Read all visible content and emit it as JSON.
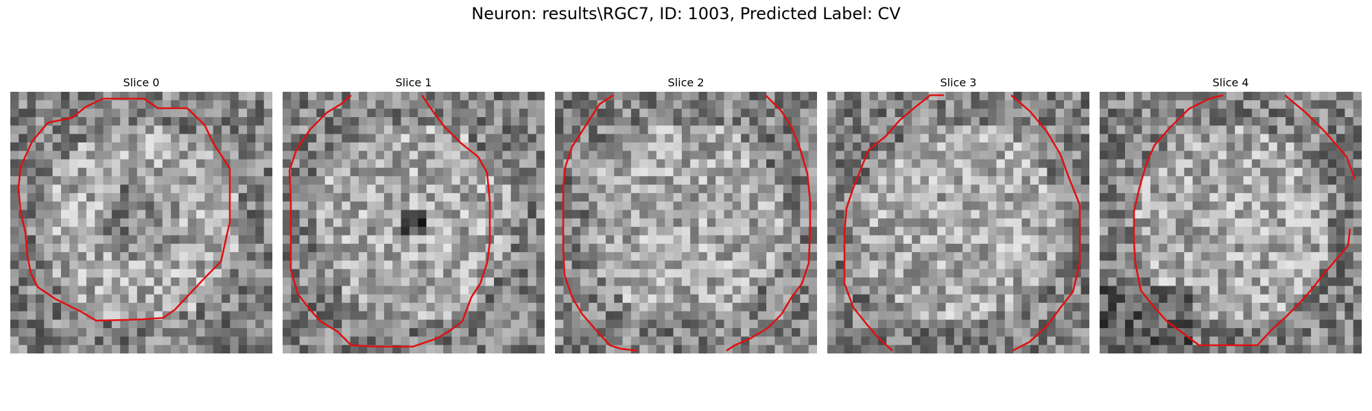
{
  "figure": {
    "title": "Neuron: results\\RGC7, ID: 1003, Predicted Label: CV",
    "contour_color": "#e01010"
  },
  "panels": [
    {
      "title": "Slice 0"
    },
    {
      "title": "Slice 1"
    },
    {
      "title": "Slice 2"
    },
    {
      "title": "Slice 3"
    },
    {
      "title": "Slice 4"
    }
  ]
}
